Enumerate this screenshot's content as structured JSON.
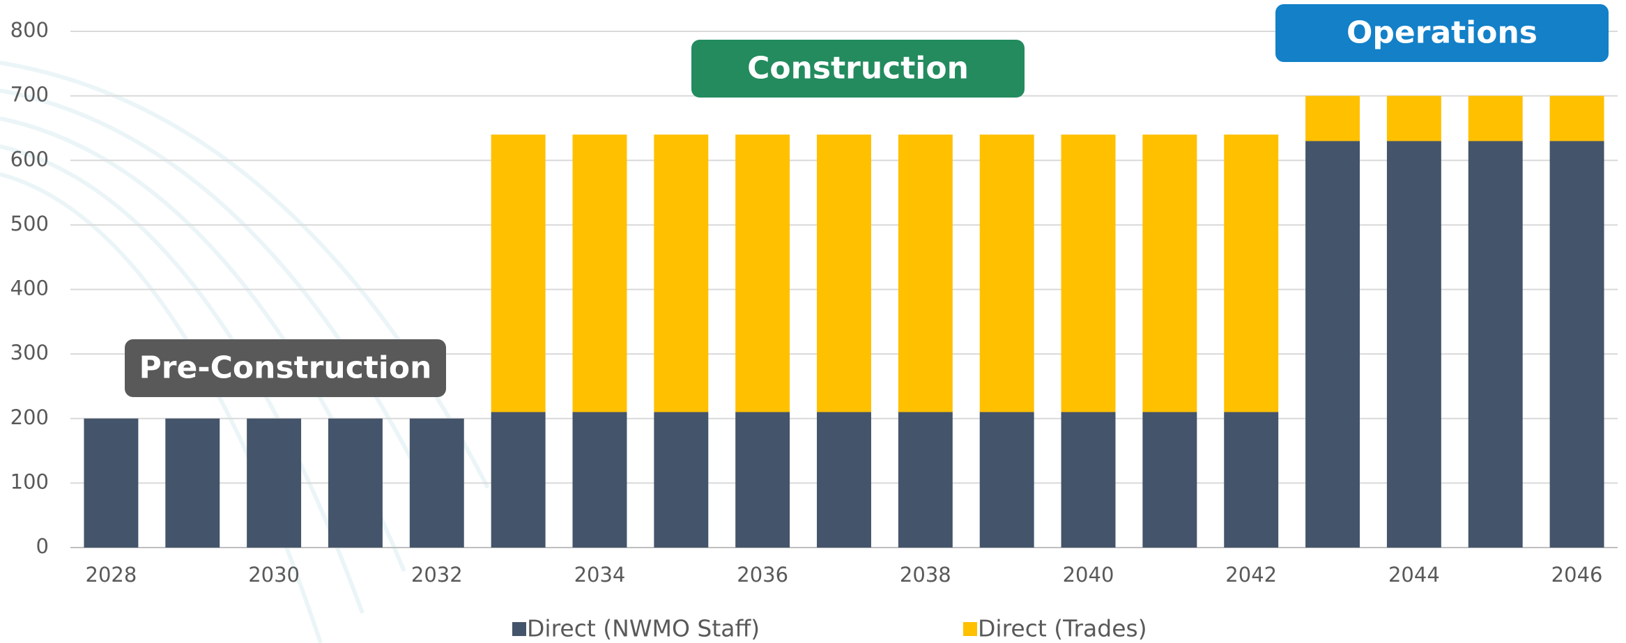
{
  "chart_data": {
    "type": "bar",
    "stacked": true,
    "categories": [
      "2028",
      null,
      "2030",
      null,
      "2032",
      null,
      "2034",
      null,
      "2036",
      null,
      "2038",
      null,
      "2040",
      null,
      "2042",
      null,
      "2044",
      null,
      "2046"
    ],
    "series": [
      {
        "name": "Direct (NWMO Staff)",
        "color": "#44546a",
        "values": [
          200,
          200,
          200,
          200,
          200,
          210,
          210,
          210,
          210,
          210,
          210,
          210,
          210,
          210,
          210,
          630,
          630,
          630,
          630
        ]
      },
      {
        "name": "Direct (Trades)",
        "color": "#ffc000",
        "values": [
          0,
          0,
          0,
          0,
          0,
          430,
          430,
          430,
          430,
          430,
          430,
          430,
          430,
          430,
          430,
          70,
          70,
          70,
          70
        ]
      }
    ],
    "ylim": [
      0,
      800
    ],
    "yticks": [
      0,
      100,
      200,
      300,
      400,
      500,
      600,
      700,
      800
    ],
    "grid": true,
    "legend": "bottom",
    "annotations": [
      {
        "text": "Pre-Construction",
        "color": "#595959"
      },
      {
        "text": "Construction",
        "color": "#238b5e"
      },
      {
        "text": "Operations",
        "color": "#1380c8"
      }
    ]
  }
}
